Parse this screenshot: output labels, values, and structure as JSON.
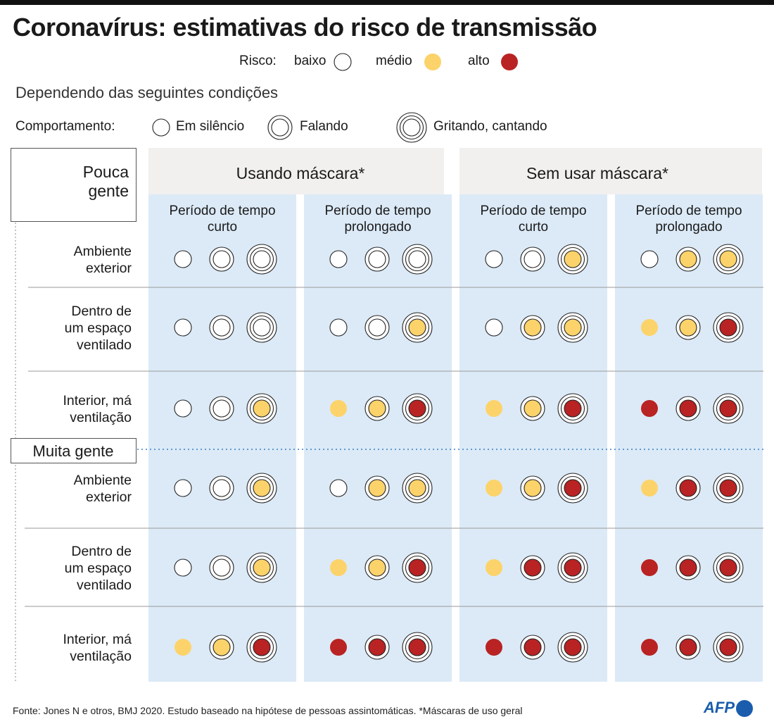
{
  "title": "Coronavírus: estimativas do risco de transmissão",
  "risk_legend": {
    "label": "Risco:",
    "items": [
      {
        "label": "baixo",
        "level": "low"
      },
      {
        "label": "médio",
        "level": "medium"
      },
      {
        "label": "alto",
        "level": "high"
      }
    ]
  },
  "subtitle": "Dependendo das seguintes condições",
  "behavior_legend": {
    "label": "Comportamento:",
    "items": [
      {
        "label": "Em silêncio",
        "rings": 1
      },
      {
        "label": "Falando",
        "rings": 2
      },
      {
        "label": "Gritando, cantando",
        "rings": 3
      }
    ]
  },
  "colors": {
    "low": "#ffffff",
    "medium": "#fcd36a",
    "high": "#b92323",
    "stroke": "#222222",
    "panel": "#dceaf7",
    "header": "#f1f0ee"
  },
  "chart_data": {
    "type": "table",
    "groups": [
      "Pouca gente",
      "Muita gente"
    ],
    "mask_headers": [
      "Usando máscara*",
      "Sem usar máscara*"
    ],
    "time_headers": [
      "Período de tempo curto",
      "Período de tempo prolongado",
      "Período de tempo curto",
      "Período de tempo prolongado"
    ],
    "environments": [
      "Ambiente exterior",
      "Dentro de um espaço ventilado",
      "Interior, má ventilação",
      "Ambiente exterior",
      "Dentro de um espaço ventilado",
      "Interior, má ventilação"
    ],
    "risk_codes": "0 = baixo, 1 = médio, 2 = alto; each cell lists Em silêncio, Falando, Gritando/cantando",
    "rows": [
      {
        "group": "Pouca gente",
        "environment": "Ambiente exterior",
        "values": [
          [
            0,
            0,
            0
          ],
          [
            0,
            0,
            0
          ],
          [
            0,
            0,
            1
          ],
          [
            0,
            1,
            1
          ]
        ]
      },
      {
        "group": "Pouca gente",
        "environment": "Dentro de um espaço ventilado",
        "values": [
          [
            0,
            0,
            0
          ],
          [
            0,
            0,
            1
          ],
          [
            0,
            1,
            1
          ],
          [
            1,
            1,
            2
          ]
        ]
      },
      {
        "group": "Pouca gente",
        "environment": "Interior, má ventilação",
        "values": [
          [
            0,
            0,
            1
          ],
          [
            1,
            1,
            2
          ],
          [
            1,
            1,
            2
          ],
          [
            2,
            2,
            2
          ]
        ]
      },
      {
        "group": "Muita gente",
        "environment": "Ambiente exterior",
        "values": [
          [
            0,
            0,
            1
          ],
          [
            0,
            1,
            1
          ],
          [
            1,
            1,
            2
          ],
          [
            1,
            2,
            2
          ]
        ]
      },
      {
        "group": "Muita gente",
        "environment": "Dentro de um espaço ventilado",
        "values": [
          [
            0,
            0,
            1
          ],
          [
            1,
            1,
            2
          ],
          [
            1,
            2,
            2
          ],
          [
            2,
            2,
            2
          ]
        ]
      },
      {
        "group": "Muita gente",
        "environment": "Interior, má ventilação",
        "values": [
          [
            1,
            1,
            2
          ],
          [
            2,
            2,
            2
          ],
          [
            2,
            2,
            2
          ],
          [
            2,
            2,
            2
          ]
        ]
      }
    ]
  },
  "footer": {
    "source": "Fonte: Jones N e otros, BMJ 2020. Estudo baseado na hipótese de pessoas assintomáticas. *Máscaras de uso geral",
    "logo": "AFP"
  }
}
